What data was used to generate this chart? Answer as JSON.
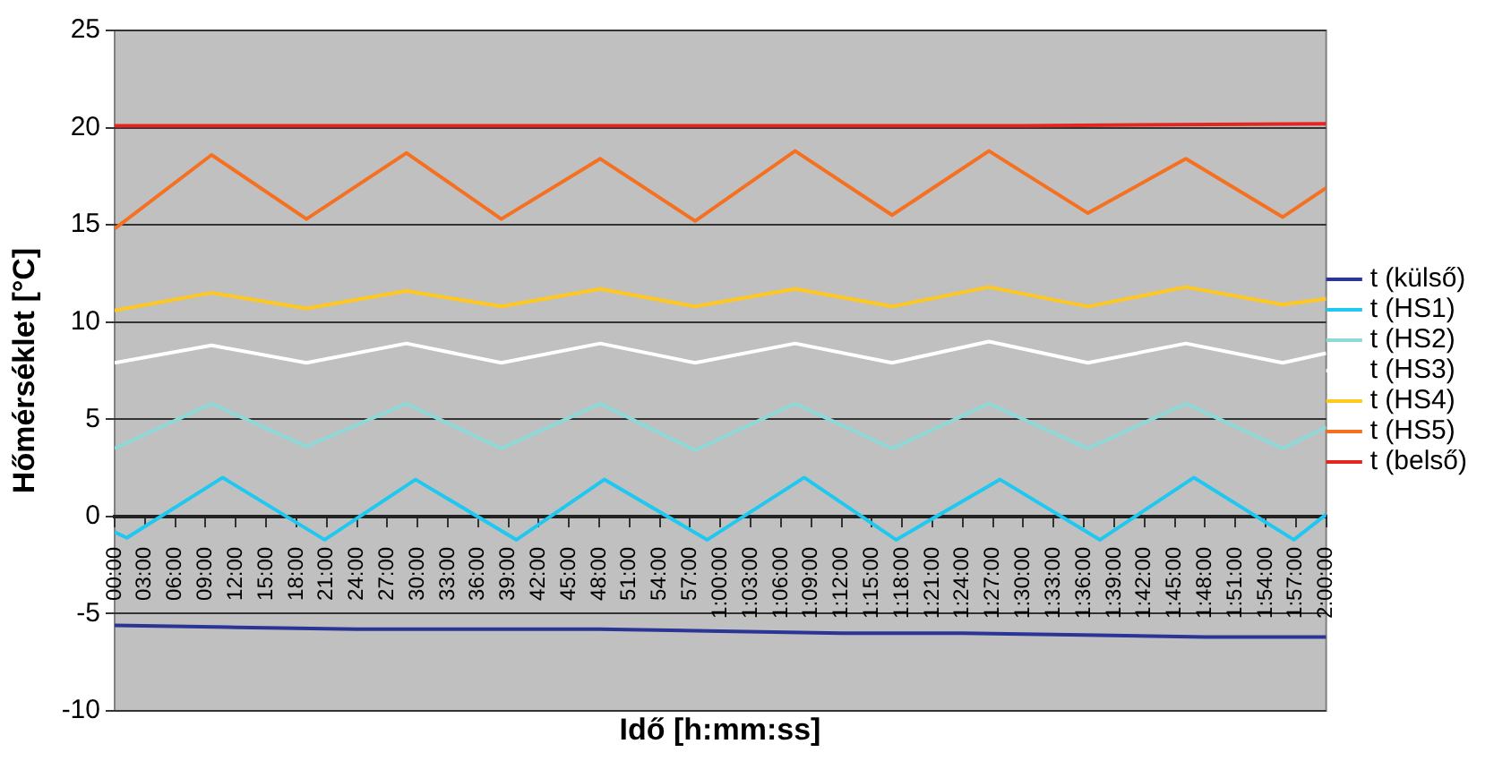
{
  "chart_data": {
    "type": "line",
    "xlabel": "Idő [h:mm:ss]",
    "ylabel": "Hőmérséklet [°C]",
    "xlim": [
      0,
      120
    ],
    "ylim": [
      -10,
      25
    ],
    "yticks": [
      -10,
      -5,
      0,
      5,
      10,
      15,
      20,
      25
    ],
    "xticks": [
      {
        "value": 0,
        "label": "00:00"
      },
      {
        "value": 3,
        "label": "03:00"
      },
      {
        "value": 6,
        "label": "06:00"
      },
      {
        "value": 9,
        "label": "09:00"
      },
      {
        "value": 12,
        "label": "12:00"
      },
      {
        "value": 15,
        "label": "15:00"
      },
      {
        "value": 18,
        "label": "18:00"
      },
      {
        "value": 21,
        "label": "21:00"
      },
      {
        "value": 24,
        "label": "24:00"
      },
      {
        "value": 27,
        "label": "27:00"
      },
      {
        "value": 30,
        "label": "30:00"
      },
      {
        "value": 33,
        "label": "33:00"
      },
      {
        "value": 36,
        "label": "36:00"
      },
      {
        "value": 39,
        "label": "39:00"
      },
      {
        "value": 42,
        "label": "42:00"
      },
      {
        "value": 45,
        "label": "45:00"
      },
      {
        "value": 48,
        "label": "48:00"
      },
      {
        "value": 51,
        "label": "51:00"
      },
      {
        "value": 54,
        "label": "54:00"
      },
      {
        "value": 57,
        "label": "57:00"
      },
      {
        "value": 60,
        "label": "1:00:00"
      },
      {
        "value": 63,
        "label": "1:03:00"
      },
      {
        "value": 66,
        "label": "1:06:00"
      },
      {
        "value": 69,
        "label": "1:09:00"
      },
      {
        "value": 72,
        "label": "1:12:00"
      },
      {
        "value": 75,
        "label": "1:15:00"
      },
      {
        "value": 78,
        "label": "1:18:00"
      },
      {
        "value": 81,
        "label": "1:21:00"
      },
      {
        "value": 84,
        "label": "1:24:00"
      },
      {
        "value": 87,
        "label": "1:27:00"
      },
      {
        "value": 90,
        "label": "1:30:00"
      },
      {
        "value": 93,
        "label": "1:33:00"
      },
      {
        "value": 96,
        "label": "1:36:00"
      },
      {
        "value": 99,
        "label": "1:39:00"
      },
      {
        "value": 102,
        "label": "1:42:00"
      },
      {
        "value": 105,
        "label": "1:45:00"
      },
      {
        "value": 108,
        "label": "1:48:00"
      },
      {
        "value": 111,
        "label": "1:51:00"
      },
      {
        "value": 114,
        "label": "1:54:00"
      },
      {
        "value": 117,
        "label": "1:57:00"
      },
      {
        "value": 120,
        "label": "2:00:00"
      }
    ],
    "grid": "y",
    "legend": "right",
    "marker": "none",
    "line_style": "solid",
    "series": [
      {
        "name": "t (külső)",
        "color": "#2b3595",
        "x": [
          0,
          12,
          24,
          36,
          48,
          60,
          72,
          84,
          96,
          108,
          120
        ],
        "values": [
          -5.6,
          -5.7,
          -5.8,
          -5.8,
          -5.8,
          -5.9,
          -6.0,
          -6.0,
          -6.1,
          -6.2,
          -6.2
        ]
      },
      {
        "name": "t (HS1)",
        "color": "#1ec8f0",
        "x": [
          0,
          1.2,
          10.7,
          20.8,
          29.8,
          39.8,
          48.5,
          58.7,
          68.3,
          77.4,
          87.7,
          97.6,
          106.9,
          116.8,
          120
        ],
        "values": [
          -0.8,
          -1.1,
          2.0,
          -1.2,
          1.9,
          -1.2,
          1.9,
          -1.2,
          2.0,
          -1.2,
          1.9,
          -1.2,
          2.0,
          -1.2,
          0.1
        ]
      },
      {
        "name": "t (HS2)",
        "color": "#8fd8d8",
        "x": [
          0,
          9.6,
          19.0,
          28.9,
          38.3,
          48.1,
          57.5,
          67.4,
          77.0,
          86.6,
          96.4,
          106.1,
          115.7,
          120
        ],
        "values": [
          3.5,
          5.8,
          3.6,
          5.8,
          3.5,
          5.8,
          3.4,
          5.8,
          3.5,
          5.8,
          3.5,
          5.8,
          3.5,
          4.6
        ]
      },
      {
        "name": "t (HS3)",
        "color": "#ffffff",
        "x": [
          0,
          9.6,
          19.0,
          28.9,
          38.3,
          48.1,
          57.5,
          67.4,
          77.0,
          86.6,
          96.4,
          106.1,
          115.7,
          120
        ],
        "values": [
          7.9,
          8.8,
          7.9,
          8.9,
          7.9,
          8.9,
          7.9,
          8.9,
          7.9,
          9.0,
          7.9,
          8.9,
          7.9,
          8.4
        ]
      },
      {
        "name": "t (HS4)",
        "color": "#ffc820",
        "x": [
          0,
          9.6,
          19.0,
          28.9,
          38.3,
          48.1,
          57.5,
          67.4,
          77.0,
          86.6,
          96.4,
          106.1,
          115.7,
          120
        ],
        "values": [
          10.6,
          11.5,
          10.7,
          11.6,
          10.8,
          11.7,
          10.8,
          11.7,
          10.8,
          11.8,
          10.8,
          11.8,
          10.9,
          11.2
        ]
      },
      {
        "name": "t (HS5)",
        "color": "#f57020",
        "x": [
          0,
          9.6,
          19.0,
          28.9,
          38.3,
          48.1,
          57.5,
          67.4,
          77.0,
          86.6,
          96.4,
          106.1,
          115.7,
          120
        ],
        "values": [
          14.8,
          18.6,
          15.3,
          18.7,
          15.3,
          18.4,
          15.2,
          18.8,
          15.5,
          18.8,
          15.6,
          18.4,
          15.4,
          16.9
        ]
      },
      {
        "name": "t (belső)",
        "color": "#e52520",
        "x": [
          0,
          30,
          60,
          90,
          120
        ],
        "values": [
          20.1,
          20.1,
          20.1,
          20.1,
          20.2
        ]
      }
    ]
  }
}
